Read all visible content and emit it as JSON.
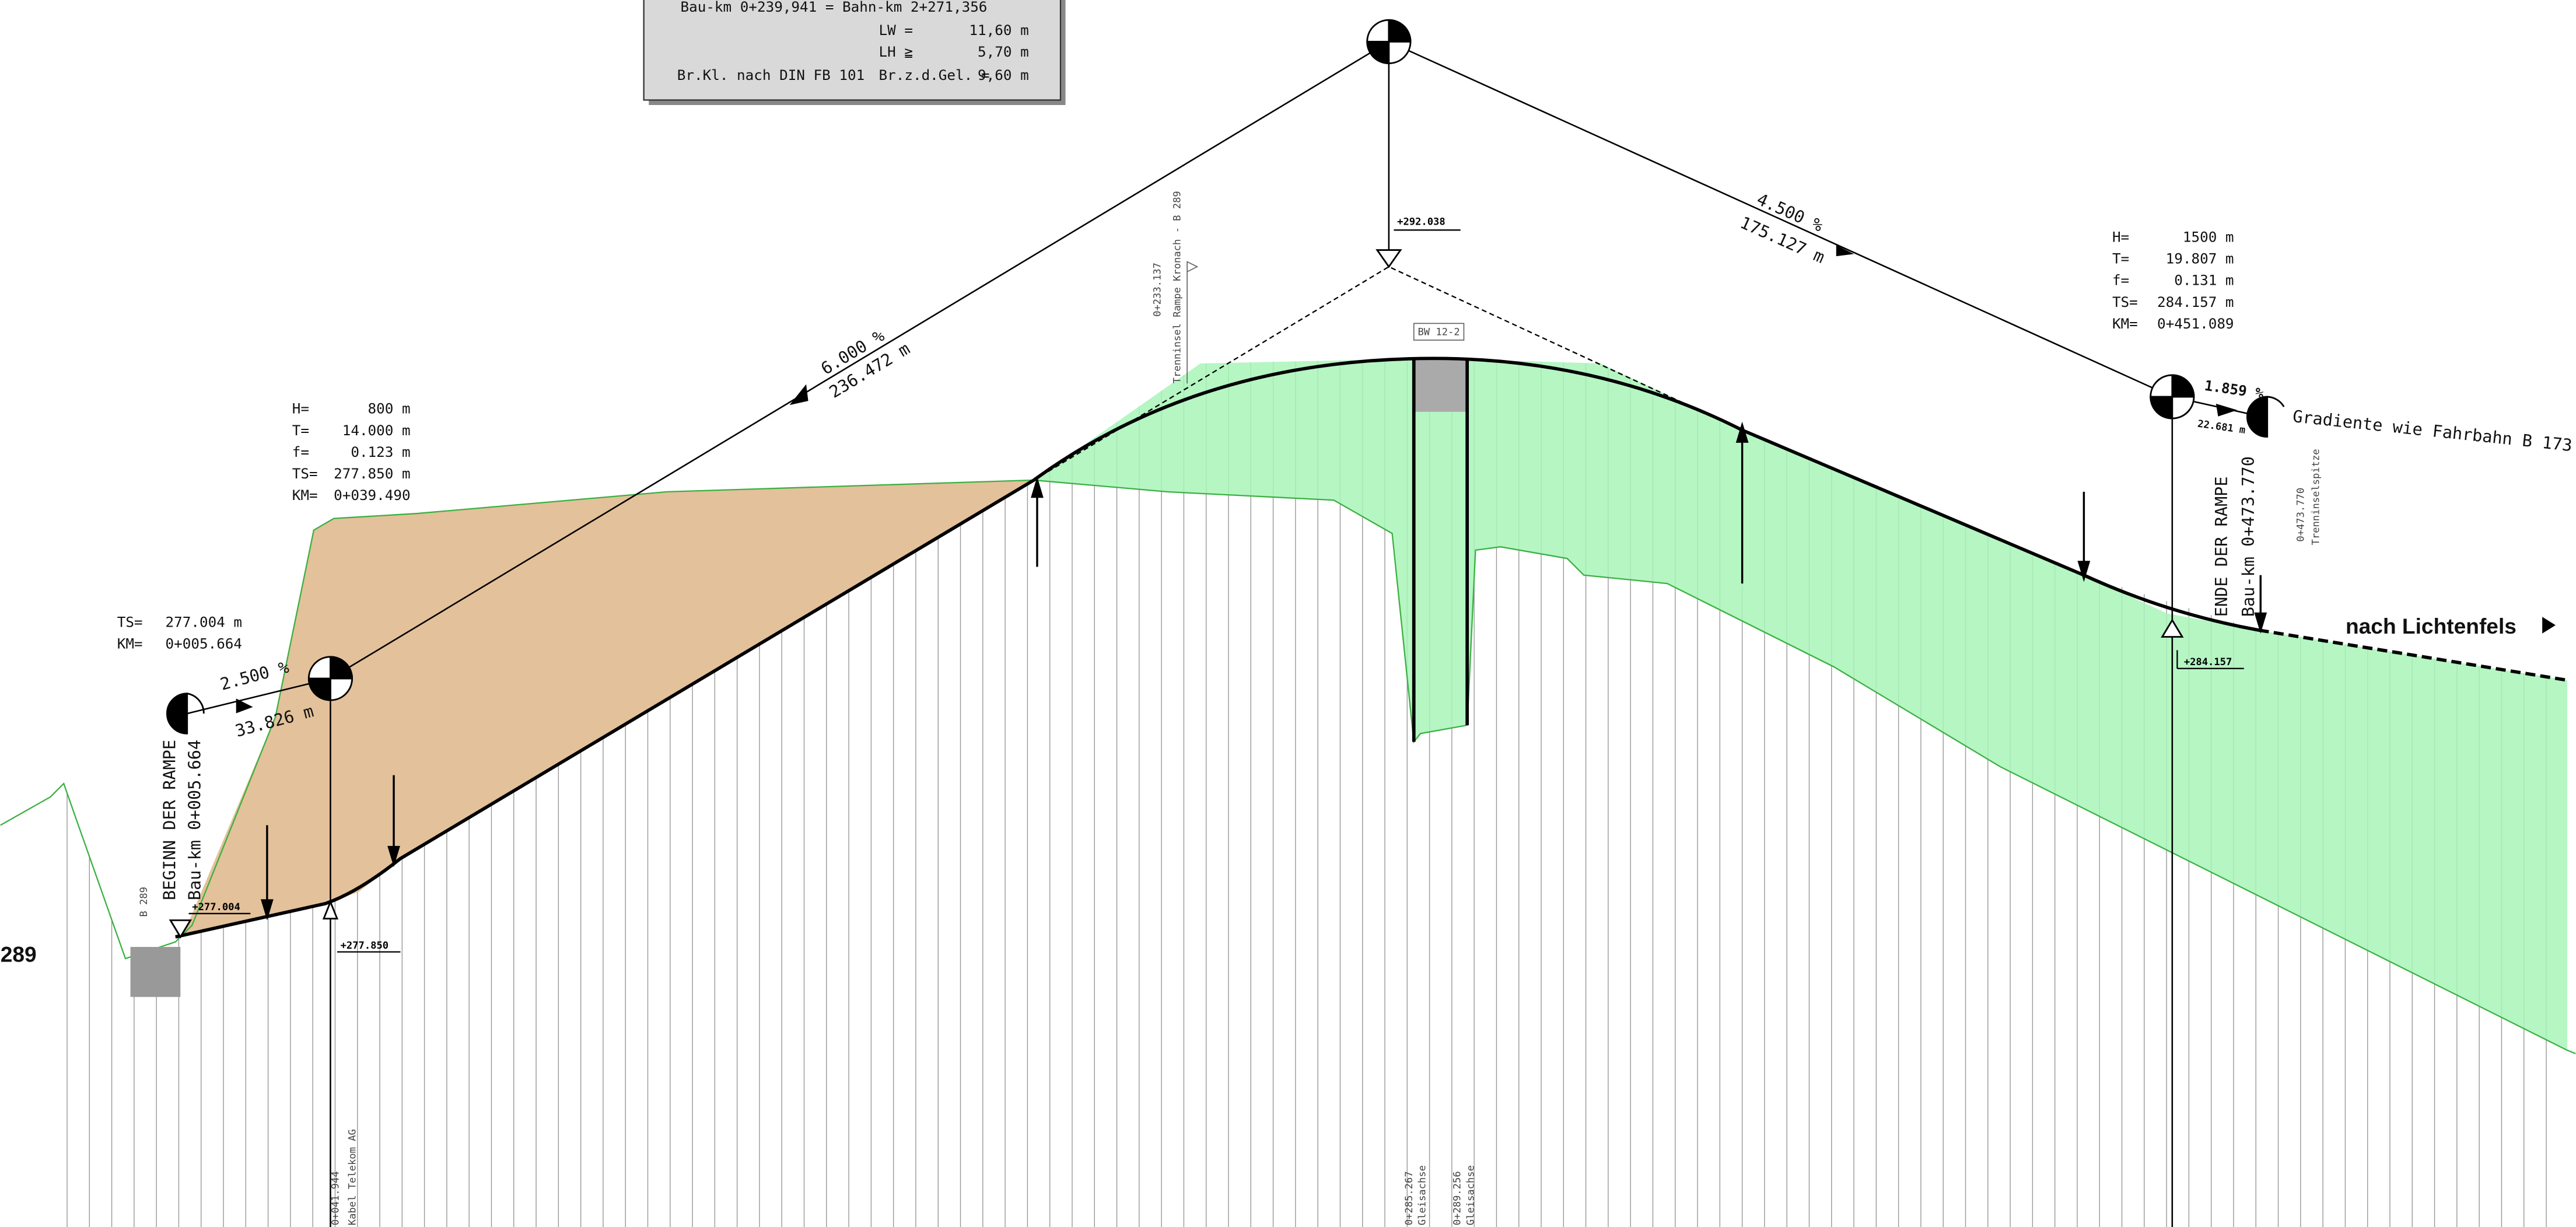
{
  "info_box": {
    "line1": "Bau-km 0+239,941 = Bahn-km 2+271,356",
    "lw": {
      "label": "LW =",
      "value": "11,60 m"
    },
    "lh": {
      "label": "LH ≧",
      "value": "5,70 m"
    },
    "class": "Br.Kl. nach DIN FB 101",
    "br": {
      "label": "Br.z.d.Gel. =",
      "value": "9,60 m"
    }
  },
  "curve_left": [
    [
      "H=",
      "800 m"
    ],
    [
      "T=",
      "14.000 m"
    ],
    [
      "f=",
      "0.123 m"
    ],
    [
      "TS=",
      "277.850 m"
    ],
    [
      "KM=",
      "0+039.490"
    ]
  ],
  "start_point": [
    [
      "TS=",
      "277.004 m"
    ],
    [
      "KM=",
      "0+005.664"
    ]
  ],
  "curve_right": [
    [
      "H=",
      "1500 m"
    ],
    [
      "T=",
      "19.807 m"
    ],
    [
      "f=",
      "0.131 m"
    ],
    [
      "TS=",
      "284.157 m"
    ],
    [
      "KM=",
      "0+451.089"
    ]
  ],
  "grades": {
    "g1": "2.500 %",
    "l1": "33.826 m",
    "g2": "6.000 %",
    "l2": "236.472 m",
    "g3": "4.500 %",
    "l3": "175.127 m",
    "g4": "1.859 %",
    "l4": "22.681 m"
  },
  "elevations": {
    "top": "+292.038",
    "start": "+277.004",
    "left": "+277.850",
    "right": "+284.157"
  },
  "structure": "BW 12-2",
  "ramp_start": {
    "title": "BEGINN DER RAMPE",
    "km": "Bau-km 0+005.664"
  },
  "ramp_end": {
    "title": "ENDE DER RAMPE",
    "km": "Bau-km 0+473.770"
  },
  "gradient_note": "Gradiente wie Fahrbahn B 173",
  "direction": "nach Lichtenfels",
  "road_left": "289",
  "notes": {
    "b289": "B 289",
    "n1km": "0+233.137",
    "n1": "Trenninsel Rampe Kronach - B 289",
    "n2km": "0+473.770",
    "n2": "Trenninselspitze",
    "n3km": "0+041.944",
    "n3": "Kabel Telekom AG",
    "n4km": "0+285.267",
    "n4": "Gleisachse",
    "n5km": "0+289.256",
    "n5": "Gleisachse"
  }
}
